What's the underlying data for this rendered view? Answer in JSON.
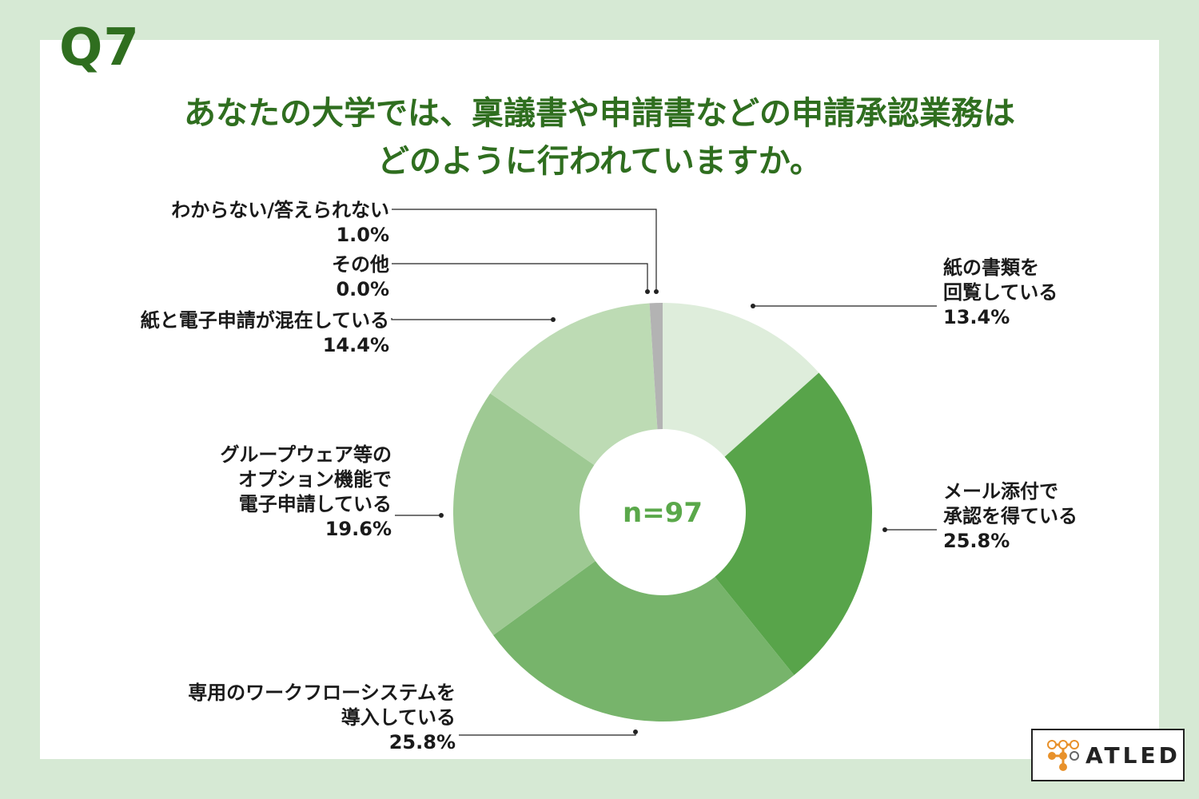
{
  "page": {
    "question_number": "Q7",
    "question_lines": [
      "あなたの大学では、稟議書や申請書などの申請承認業務は",
      "どのように行われていますか。"
    ],
    "logo_text": "ATLED",
    "colors": {
      "background": "#d6e9d4",
      "panel": "#ffffff",
      "accent": "#2f6e1f",
      "center_text": "#5aa84a"
    }
  },
  "chart_data": {
    "type": "pie",
    "variant": "donut",
    "center_label": "n=97",
    "start_angle_deg": 0,
    "direction": "clockwise",
    "slices": [
      {
        "name_lines": [
          "紙の書類を",
          "回覧している"
        ],
        "value": 13.4,
        "label": "13.4%",
        "color": "#deeddb",
        "side": "right"
      },
      {
        "name_lines": [
          "メール添付で",
          "承認を得ている"
        ],
        "value": 25.8,
        "label": "25.8%",
        "color": "#58a44a",
        "side": "right"
      },
      {
        "name_lines": [
          "専用のワークフローシステムを",
          "導入している"
        ],
        "value": 25.8,
        "label": "25.8%",
        "color": "#77b46b",
        "side": "left"
      },
      {
        "name_lines": [
          "グループウェア等の",
          "オプション機能で",
          "電子申請している"
        ],
        "value": 19.6,
        "label": "19.6%",
        "color": "#9ec993",
        "side": "left"
      },
      {
        "name_lines": [
          "紙と電子申請が混在している"
        ],
        "value": 14.4,
        "label": "14.4%",
        "color": "#bddbb4",
        "side": "left"
      },
      {
        "name_lines": [
          "その他"
        ],
        "value": 0.0,
        "label": "0.0%",
        "color": "#999999",
        "side": "left"
      },
      {
        "name_lines": [
          "わからない/答えられない"
        ],
        "value": 1.0,
        "label": "1.0%",
        "color": "#b3b3b3",
        "side": "left"
      }
    ]
  }
}
